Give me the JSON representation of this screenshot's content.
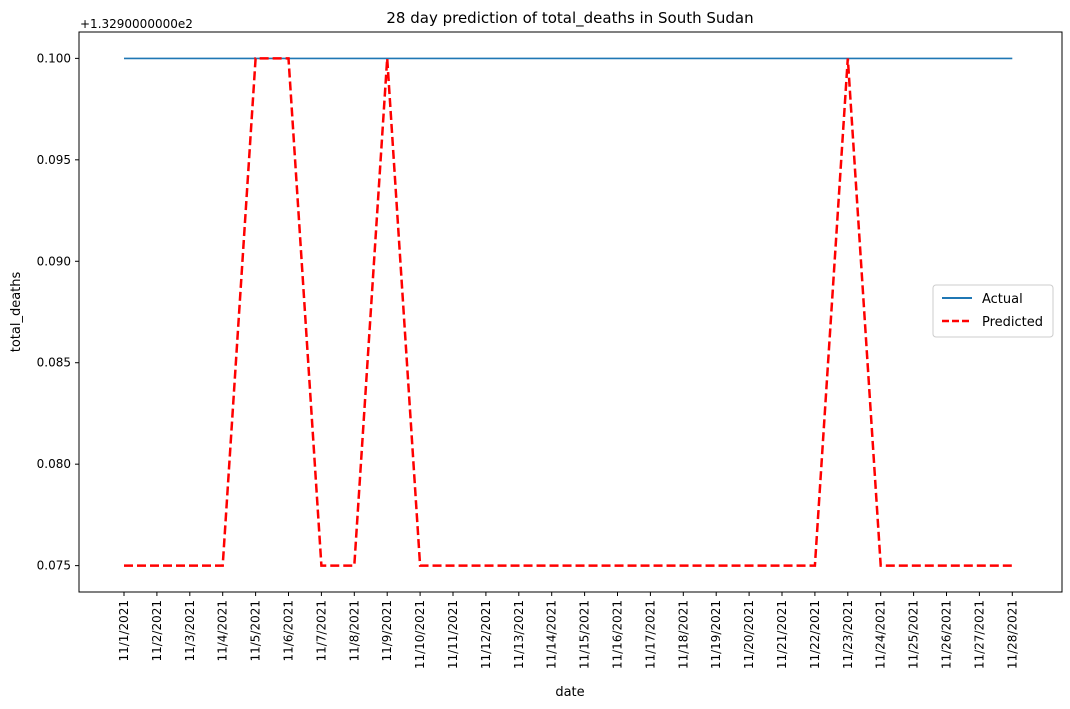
{
  "chart_data": {
    "type": "line",
    "title": "28 day prediction of total_deaths in South Sudan",
    "xlabel": "date",
    "ylabel": "total_deaths",
    "offset_label": "+1.3290000000e2",
    "x": [
      "11/1/2021",
      "11/2/2021",
      "11/3/2021",
      "11/4/2021",
      "11/5/2021",
      "11/6/2021",
      "11/7/2021",
      "11/8/2021",
      "11/9/2021",
      "11/10/2021",
      "11/11/2021",
      "11/12/2021",
      "11/13/2021",
      "11/14/2021",
      "11/15/2021",
      "11/16/2021",
      "11/17/2021",
      "11/18/2021",
      "11/19/2021",
      "11/20/2021",
      "11/21/2021",
      "11/22/2021",
      "11/23/2021",
      "11/24/2021",
      "11/25/2021",
      "11/26/2021",
      "11/27/2021",
      "11/28/2021"
    ],
    "yticks": [
      "0.075",
      "0.080",
      "0.085",
      "0.090",
      "0.095",
      "0.100"
    ],
    "ylim": [
      0.0737,
      0.1013
    ],
    "grid": false,
    "legend_position": "right",
    "series": [
      {
        "name": "Actual",
        "color": "#1f77b4",
        "style": "solid",
        "values": [
          0.1,
          0.1,
          0.1,
          0.1,
          0.1,
          0.1,
          0.1,
          0.1,
          0.1,
          0.1,
          0.1,
          0.1,
          0.1,
          0.1,
          0.1,
          0.1,
          0.1,
          0.1,
          0.1,
          0.1,
          0.1,
          0.1,
          0.1,
          0.1,
          0.1,
          0.1,
          0.1,
          0.1
        ]
      },
      {
        "name": "Predicted",
        "color": "#ff0000",
        "style": "dashed",
        "values": [
          0.075,
          0.075,
          0.075,
          0.075,
          0.1,
          0.1,
          0.075,
          0.075,
          0.1,
          0.075,
          0.075,
          0.075,
          0.075,
          0.075,
          0.075,
          0.075,
          0.075,
          0.075,
          0.075,
          0.075,
          0.075,
          0.075,
          0.1,
          0.075,
          0.075,
          0.075,
          0.075,
          0.075
        ]
      }
    ]
  }
}
